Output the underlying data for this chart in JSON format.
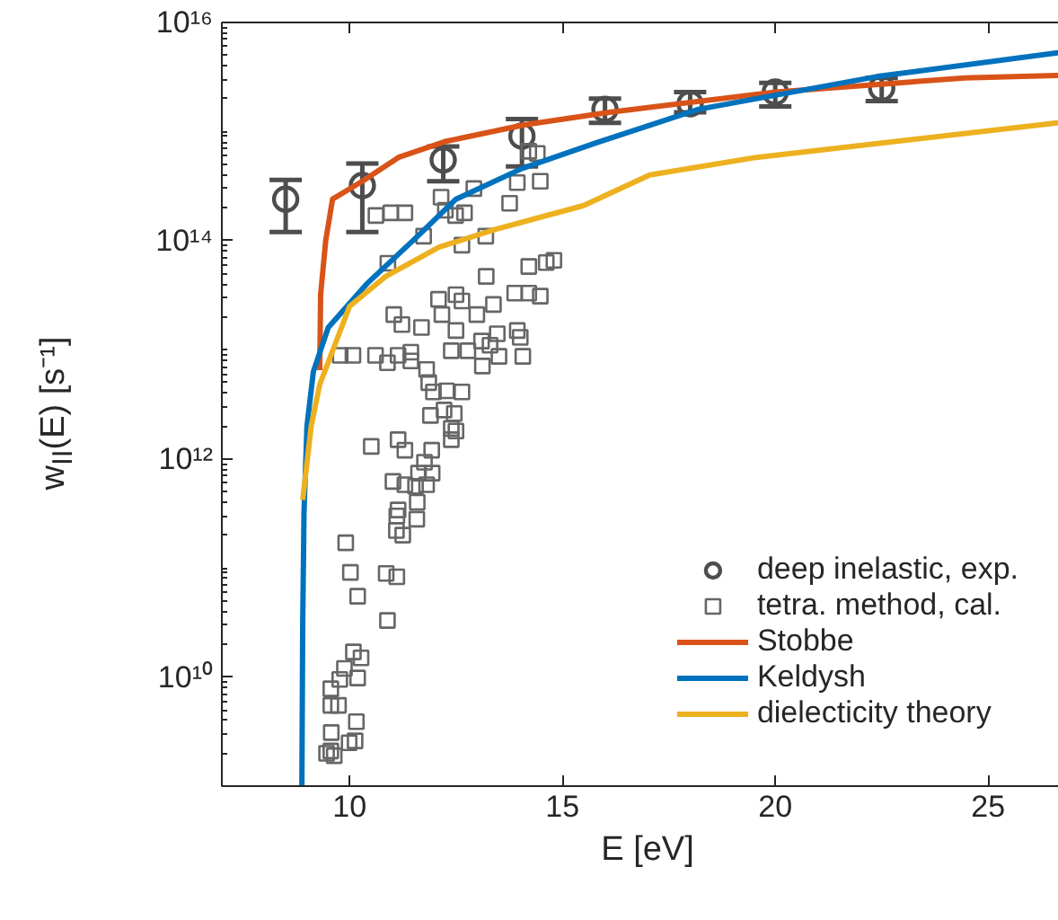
{
  "chart_data": {
    "type": "line",
    "xlabel": "E [eV]",
    "ylabel": "w$_{II}$(E) [s⁻¹]",
    "log": "y",
    "xlim": [
      7,
      27
    ],
    "xticks": [
      10,
      15,
      20,
      25
    ],
    "ylim": [
      1000000000.0,
      1e+16
    ],
    "yticks": [
      {
        "value": 10000000000.0,
        "label": "10¹⁰"
      },
      {
        "value": 1000000000000.0,
        "label": "10¹²"
      },
      {
        "value": 100000000000000.0,
        "label": "10¹⁴"
      },
      {
        "value": 1e+16,
        "label": "10¹⁶"
      }
    ],
    "legend": "bottom right",
    "series": [
      {
        "name": "deep inelastic, exp.",
        "type": "scatter",
        "marker": "circle",
        "color": "#4d4d4d",
        "x": [
          8.5,
          10.3,
          12.2,
          14.05,
          16,
          18,
          20,
          22.5
        ],
        "values": [
          240000000000000.0,
          320000000000000.0,
          550000000000000.0,
          910000000000000.0,
          1600000000000000.0,
          1800000000000000.0,
          2300000000000000.0,
          2500000000000000.0
        ],
        "errors": [
          [
            120000000000000.0,
            360000000000000.0
          ],
          [
            120000000000000.0,
            510000000000000.0
          ],
          [
            350000000000000.0,
            730000000000000.0
          ],
          [
            480000000000000.0,
            1300000000000000.0
          ],
          [
            1200000000000000.0,
            2000000000000000.0
          ],
          [
            1500000000000000.0,
            2300000000000000.0
          ],
          [
            1700000000000000.0,
            2800000000000000.0
          ],
          [
            1900000000000000.0,
            3100000000000000.0
          ]
        ]
      },
      {
        "name": "tetra. method, cal.",
        "type": "scatter",
        "marker": "square",
        "color": "#666666",
        "x": [
          10.62,
          10.97,
          11.3,
          11.74,
          12.15,
          12.25,
          12.49,
          12.7,
          12.92,
          13.76,
          14.48,
          13.94,
          14.21,
          14.41,
          10.9,
          12.64,
          13.2,
          11.04,
          11.23,
          11.69,
          12.09,
          12.17,
          12.5,
          12.64,
          12.99,
          13.38,
          13.21,
          14.21,
          14.62,
          14.8,
          13.88,
          14.21,
          14.48,
          12.5,
          13.1,
          13.47,
          13.94,
          14.01,
          12.39,
          12.78,
          13.3,
          9.78,
          10.08,
          10.61,
          11.14,
          11.44,
          10.89,
          11.44,
          11.81,
          11.86,
          11.97,
          12.28,
          12.64,
          11.9,
          12.22,
          12.46,
          12.39,
          12.5,
          12.39,
          10.51,
          11.14,
          11.3,
          11.93,
          11.76,
          11.94,
          11.62,
          11.02,
          11.3,
          11.55,
          11.81,
          11.59,
          11.14,
          11.11,
          11.58,
          11.1,
          11.25,
          9.91,
          10.02,
          10.86,
          11.11,
          10.19,
          10.89,
          10.09,
          10.27,
          9.88,
          9.77,
          10.19,
          9.56,
          9.56,
          9.74,
          9.57,
          10.16,
          10.13,
          9.99,
          9.46,
          9.64,
          9.56,
          13.51,
          14.07,
          13.12
        ],
        "values": [
          170000000000000.0,
          180000000000000.0,
          180000000000000.0,
          110000000000000.0,
          250000000000000.0,
          190000000000000.0,
          170000000000000.0,
          180000000000000.0,
          300000000000000.0,
          220000000000000.0,
          350000000000000.0,
          340000000000000.0,
          660000000000000.0,
          630000000000000.0,
          62000000000000.0,
          91000000000000.0,
          110000000000000.0,
          21000000000000.0,
          17000000000000.0,
          16000000000000.0,
          29000000000000.0,
          21000000000000.0,
          32000000000000.0,
          28000000000000.0,
          21000000000000.0,
          26000000000000.0,
          47000000000000.0,
          58000000000000.0,
          63000000000000.0,
          66000000000000.0,
          33000000000000.0,
          33000000000000.0,
          31000000000000.0,
          15000000000000.0,
          12000000000000.0,
          14000000000000.0,
          15000000000000.0,
          13000000000000.0,
          9800000000000.0,
          9800000000000.0,
          11000000000000.0,
          8900000000000.0,
          8900000000000.0,
          8900000000000.0,
          8900000000000.0,
          9500000000000.0,
          7600000000000.0,
          7900000000000.0,
          6600000000000.0,
          5000000000000.0,
          4100000000000.0,
          4200000000000.0,
          4100000000000.0,
          2500000000000.0,
          2800000000000.0,
          2600000000000.0,
          1900000000000.0,
          1800000000000.0,
          1500000000000.0,
          1300000000000.0,
          1500000000000.0,
          1200000000000.0,
          1200000000000.0,
          930000000000.0,
          740000000000.0,
          740000000000.0,
          620000000000.0,
          580000000000.0,
          560000000000.0,
          580000000000.0,
          400000000000.0,
          340000000000.0,
          300000000000.0,
          280000000000.0,
          220000000000.0,
          200000000000.0,
          170000000000.0,
          91000000000.0,
          89000000000.0,
          83000000000.0,
          55000000000.0,
          33000000000.0,
          17000000000.0,
          15000000000.0,
          12000000000.0,
          9500000000.0,
          9800000000.0,
          7800000000.0,
          5500000000.0,
          5500000000.0,
          3100000000.0,
          3900000000.0,
          2600000000.0,
          2500000000.0,
          2000000000.0,
          1900000000.0,
          2100000000.0,
          8700000000000.0,
          8700000000000.0,
          7100000000000.0
        ]
      },
      {
        "name": "Stobbe",
        "type": "line",
        "color": "#d95319",
        "x": [
          9.3,
          9.32,
          9.44,
          9.6,
          10.3,
          11.15,
          12.24,
          14.1,
          16.1,
          20,
          24.45,
          27
        ],
        "values": [
          6500000000000.0,
          32000000000000.0,
          100000000000000.0,
          240000000000000.0,
          350000000000000.0,
          580000000000000.0,
          810000000000000.0,
          1150000000000000.0,
          1500000000000000.0,
          2300000000000000.0,
          3100000000000000.0,
          3300000000000000.0
        ]
      },
      {
        "name": "Keldysh",
        "type": "line",
        "color": "#0072bd",
        "x": [
          8.88,
          8.9,
          8.93,
          9.0,
          9.15,
          9.5,
          10.4,
          11.6,
          12.5,
          14.06,
          15.8,
          18.2,
          22.4,
          27
        ],
        "values": [
          1000000000.0,
          32000000000.0,
          320000000000.0,
          2000000000000.0,
          6300000000000.0,
          16000000000000.0,
          40000000000000.0,
          110000000000000.0,
          240000000000000.0,
          460000000000000.0,
          790000000000000.0,
          1600000000000000.0,
          3200000000000000.0,
          5500000000000000.0
        ]
      },
      {
        "name": "dielecticity theory",
        "type": "line",
        "color": "#edb120",
        "x": [
          8.9,
          9.1,
          9.3,
          10,
          10.85,
          12.1,
          13.4,
          15.5,
          17.05,
          19.56,
          27
        ],
        "values": [
          420000000000.0,
          2000000000000.0,
          4800000000000.0,
          25000000000000.0,
          47000000000000.0,
          87000000000000.0,
          126000000000000.0,
          210000000000000.0,
          400000000000000.0,
          580000000000000.0,
          1250000000000000.0
        ]
      }
    ]
  }
}
